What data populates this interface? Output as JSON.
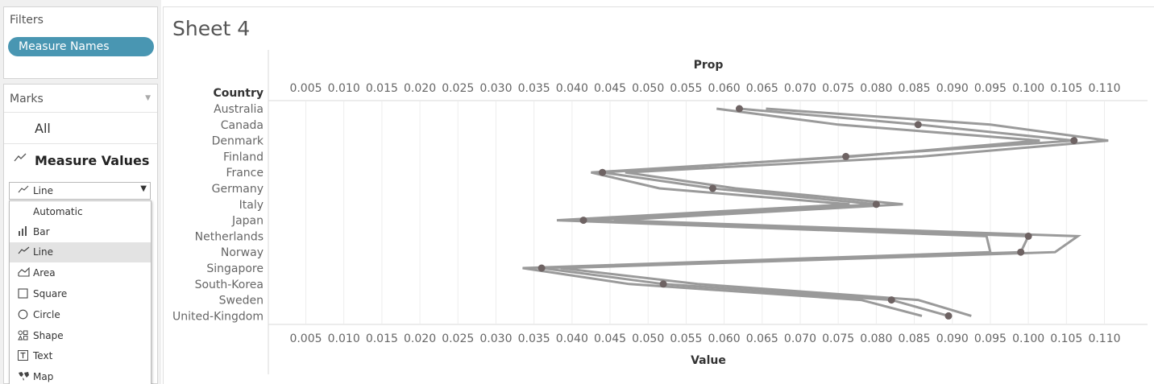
{
  "filters": {
    "title": "Filters",
    "pill": "Measure Names"
  },
  "marks": {
    "title": "Marks",
    "all_label": "All",
    "measure_values_label": "Measure Values",
    "mark_type": {
      "icon": "line-icon",
      "value": "Line"
    },
    "dropdown_items": [
      {
        "label": "Automatic",
        "icon": "",
        "selected": false
      },
      {
        "label": "Bar",
        "icon": "bar-icon",
        "selected": false
      },
      {
        "label": "Line",
        "icon": "line-icon",
        "selected": true
      },
      {
        "label": "Area",
        "icon": "area-icon",
        "selected": false
      },
      {
        "label": "Square",
        "icon": "square-icon",
        "selected": false
      },
      {
        "label": "Circle",
        "icon": "circle-icon",
        "selected": false
      },
      {
        "label": "Shape",
        "icon": "shape-icon",
        "selected": false
      },
      {
        "label": "Text",
        "icon": "text-icon",
        "selected": false
      },
      {
        "label": "Map",
        "icon": "map-icon",
        "selected": false
      }
    ]
  },
  "sheet": {
    "title": "Sheet 4"
  },
  "chart_data": {
    "type": "line",
    "title": "",
    "row_header": "Country",
    "top_axis_label": "Prop",
    "xlabel": "Value",
    "xlim": [
      0.001,
      0.1155
    ],
    "ticks": [
      "0.005",
      "0.010",
      "0.015",
      "0.020",
      "0.025",
      "0.030",
      "0.035",
      "0.040",
      "0.045",
      "0.050",
      "0.055",
      "0.060",
      "0.065",
      "0.070",
      "0.075",
      "0.080",
      "0.085",
      "0.090",
      "0.095",
      "0.100",
      "0.105",
      "0.110"
    ],
    "grid": true,
    "categories": [
      "Australia",
      "Canada",
      "Denmark",
      "Finland",
      "France",
      "Germany",
      "Italy",
      "Japan",
      "Netherlands",
      "Norway",
      "Singapore",
      "South-Korea",
      "Sweden",
      "United-Kingdom"
    ],
    "series": [
      {
        "values": [
          0.059,
          0.075,
          0.1015,
          0.077,
          0.0425,
          0.0515,
          0.0765,
          0.038,
          0.0945,
          0.095,
          0.0335,
          0.0475,
          0.078,
          0.086
        ]
      },
      {
        "values": [
          0.0655,
          0.095,
          0.1105,
          0.086,
          0.047,
          0.0615,
          0.0835,
          0.0455,
          0.1065,
          0.1035,
          0.0385,
          0.0565,
          0.0855,
          0.0925
        ]
      },
      {
        "values": [
          0.062,
          0.0855,
          0.106,
          0.076,
          0.044,
          0.0585,
          0.08,
          0.0415,
          0.1,
          0.099,
          0.036,
          0.052,
          0.082,
          0.0895
        ]
      }
    ]
  }
}
